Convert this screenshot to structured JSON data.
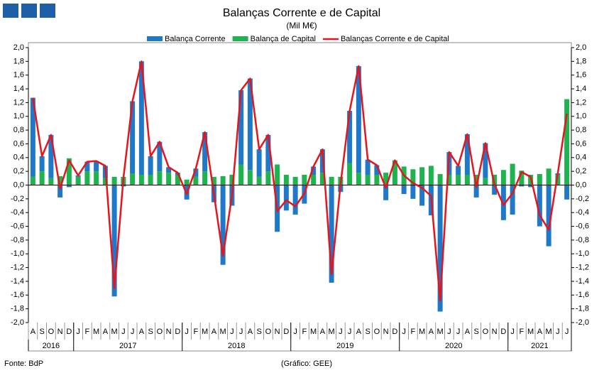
{
  "chart_data": {
    "type": "bar_line",
    "title": "Balanças Corrente e de Capital",
    "subtitle": "(Mil M€)",
    "source": "Fonte: BdP",
    "credit": "(Gráfico: GEE)",
    "categories": [
      "A",
      "S",
      "O",
      "N",
      "D",
      "J",
      "F",
      "M",
      "A",
      "M",
      "J",
      "J",
      "A",
      "S",
      "O",
      "N",
      "D",
      "J",
      "F",
      "M",
      "A",
      "M",
      "J",
      "J",
      "A",
      "S",
      "O",
      "N",
      "D",
      "J",
      "F",
      "M",
      "A",
      "M",
      "J",
      "J",
      "A",
      "S",
      "O",
      "N",
      "D",
      "J",
      "F",
      "M",
      "A",
      "M",
      "J",
      "J",
      "A",
      "S",
      "O",
      "N",
      "D",
      "J",
      "F",
      "M",
      "A",
      "M",
      "J",
      "J"
    ],
    "year_labels": [
      "2016",
      "2017",
      "2018",
      "2019",
      "2020",
      "2021"
    ],
    "series": [
      {
        "name": "Balança Corrente",
        "color": "#1f78c8",
        "kind": "bar",
        "values": [
          1.15,
          0.22,
          0.63,
          -0.18,
          -0.03,
          0.02,
          0.14,
          0.15,
          0.18,
          -1.62,
          -0.02,
          1.05,
          1.65,
          0.27,
          0.43,
          0.08,
          0.03,
          -0.21,
          0.12,
          0.57,
          -0.25,
          -1.16,
          -0.3,
          1.08,
          1.33,
          0.4,
          0.53,
          -0.68,
          -0.37,
          -0.43,
          -0.27,
          0.12,
          0.34,
          -1.42,
          -0.1,
          0.76,
          1.55,
          0.22,
          0.14,
          -0.22,
          0.0,
          -0.13,
          -0.2,
          -0.3,
          -0.44,
          -1.84,
          0.33,
          0.13,
          0.59,
          -0.18,
          0.51,
          -0.14,
          -0.51,
          -0.43,
          -0.02,
          -0.03,
          -0.6,
          -0.89,
          0.02,
          -0.21
        ]
      },
      {
        "name": "Balança de Capital",
        "color": "#1db34f",
        "kind": "bar",
        "values": [
          0.12,
          0.2,
          0.1,
          0.13,
          0.39,
          0.12,
          0.2,
          0.2,
          0.1,
          0.12,
          0.12,
          0.17,
          0.15,
          0.15,
          0.2,
          0.18,
          0.15,
          0.08,
          0.12,
          0.2,
          0.12,
          0.13,
          0.15,
          0.3,
          0.22,
          0.12,
          0.2,
          0.3,
          0.15,
          0.12,
          0.15,
          0.15,
          0.18,
          0.12,
          0.12,
          0.32,
          0.18,
          0.15,
          0.15,
          0.18,
          0.36,
          0.27,
          0.23,
          0.26,
          0.28,
          0.16,
          0.15,
          0.15,
          0.15,
          0.15,
          0.1,
          0.15,
          0.22,
          0.31,
          0.21,
          0.15,
          0.16,
          0.24,
          0.15,
          1.25
        ]
      },
      {
        "name": "Balanças Corrente e de Capital",
        "color": "#e8141c",
        "kind": "line",
        "values": [
          1.27,
          0.42,
          0.73,
          -0.05,
          0.36,
          0.14,
          0.34,
          0.35,
          0.28,
          -1.5,
          0.1,
          1.22,
          1.8,
          0.42,
          0.63,
          0.26,
          0.18,
          -0.13,
          0.24,
          0.77,
          -0.13,
          -1.03,
          -0.15,
          1.38,
          1.55,
          0.52,
          0.73,
          -0.38,
          -0.22,
          -0.31,
          -0.12,
          0.27,
          0.52,
          -1.3,
          0.02,
          1.08,
          1.73,
          0.37,
          0.29,
          -0.04,
          0.36,
          0.14,
          0.03,
          -0.04,
          -0.16,
          -1.68,
          0.48,
          0.28,
          0.74,
          -0.03,
          0.61,
          0.01,
          -0.29,
          -0.12,
          0.19,
          0.12,
          -0.44,
          -0.65,
          0.17,
          1.04
        ]
      }
    ],
    "ylim": [
      -2,
      2
    ],
    "yticks": [
      {
        "value": -2,
        "label": "-2,0"
      },
      {
        "value": -1.8,
        "label": "-1,8"
      },
      {
        "value": -1.6,
        "label": "-1,6"
      },
      {
        "value": -1.4,
        "label": "-1,4"
      },
      {
        "value": -1.2,
        "label": "-1,2"
      },
      {
        "value": -1,
        "label": "-1,0"
      },
      {
        "value": -0.8,
        "label": "-0,8"
      },
      {
        "value": -0.6,
        "label": "-0,6"
      },
      {
        "value": -0.4,
        "label": "-0,4"
      },
      {
        "value": -0.2,
        "label": "-0,2"
      },
      {
        "value": 0,
        "label": "0,0"
      },
      {
        "value": 0.2,
        "label": "0,2"
      },
      {
        "value": 0.4,
        "label": "0,4"
      },
      {
        "value": 0.6,
        "label": "0,6"
      },
      {
        "value": 0.8,
        "label": "0,8"
      },
      {
        "value": 1,
        "label": "1,0"
      },
      {
        "value": 1.2,
        "label": "1,2"
      },
      {
        "value": 1.4,
        "label": "1,4"
      },
      {
        "value": 1.6,
        "label": "1,6"
      },
      {
        "value": 1.8,
        "label": "1,8"
      },
      {
        "value": 2,
        "label": "2,0"
      }
    ],
    "y2lim": [
      -2,
      2
    ],
    "y2ticks": [
      {
        "value": -2,
        "label": "-2,0"
      },
      {
        "value": -1.8,
        "label": "-1,8"
      },
      {
        "value": -1.6,
        "label": "-1,6"
      },
      {
        "value": -1.4,
        "label": "-1,4"
      },
      {
        "value": -1.2,
        "label": "-1,2"
      },
      {
        "value": -1,
        "label": "-1,0"
      },
      {
        "value": -0.8,
        "label": "-0,8"
      },
      {
        "value": -0.6,
        "label": "-0,6"
      },
      {
        "value": -0.4,
        "label": "-0,4"
      },
      {
        "value": -0.2,
        "label": "-0,2"
      },
      {
        "value": 0,
        "label": "0,0"
      },
      {
        "value": 0.2,
        "label": "0,2"
      },
      {
        "value": 0.4,
        "label": "0,4"
      },
      {
        "value": 0.6,
        "label": "0,6"
      },
      {
        "value": 0.8,
        "label": "0,8"
      },
      {
        "value": 1,
        "label": "1,0"
      },
      {
        "value": 1.2,
        "label": "1,2"
      },
      {
        "value": 1.4,
        "label": "1,4"
      },
      {
        "value": 1.6,
        "label": "1,6"
      },
      {
        "value": 1.8,
        "label": "1,8"
      },
      {
        "value": 2,
        "label": "2,0"
      }
    ],
    "legend": "top"
  }
}
